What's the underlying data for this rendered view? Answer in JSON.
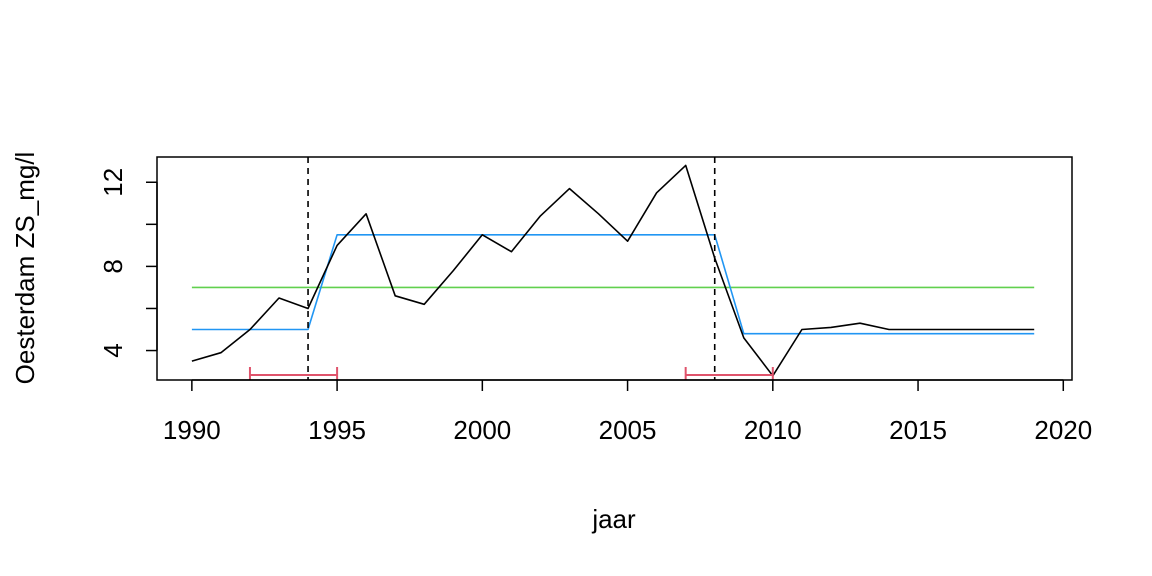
{
  "chart_data": {
    "type": "line",
    "xlabel": "jaar",
    "ylabel": "Oesterdam ZS_mg/l",
    "xlim": [
      1988.8,
      2020.3
    ],
    "ylim": [
      2.6,
      13.2
    ],
    "x_ticks": [
      1990,
      1995,
      2000,
      2005,
      2010,
      2015,
      2020
    ],
    "y_ticks_labeled": [
      4,
      8,
      12
    ],
    "y_ticks_minor": [
      6,
      10
    ],
    "series": [
      {
        "role": "observed",
        "color": "#000000",
        "x": [
          1990,
          1991,
          1992,
          1993,
          1994,
          1995,
          1996,
          1997,
          1998,
          1999,
          2000,
          2001,
          2002,
          2003,
          2004,
          2005,
          2006,
          2007,
          2008,
          2009,
          2010,
          2011,
          2012,
          2013,
          2014,
          2015,
          2016,
          2017,
          2018,
          2019
        ],
        "y": [
          3.5,
          3.9,
          5.0,
          6.5,
          6.0,
          9.0,
          10.5,
          6.6,
          6.2,
          7.8,
          9.5,
          8.7,
          10.4,
          11.7,
          10.5,
          9.2,
          11.5,
          12.8,
          8.4,
          4.6,
          2.8,
          5.0,
          5.1,
          5.3,
          5.0,
          5.0,
          5.0,
          5.0,
          5.0,
          5.0
        ]
      },
      {
        "role": "segmented-fit",
        "color": "#2196f3",
        "x": [
          1990,
          1994,
          1995,
          2008,
          2009,
          2019
        ],
        "y": [
          5.0,
          5.0,
          9.5,
          9.5,
          4.8,
          4.8
        ]
      },
      {
        "role": "overall-mean",
        "color": "#61d04f",
        "x": [
          1990,
          2019
        ],
        "y": [
          7.0,
          7.0
        ]
      }
    ],
    "breakpoints": [
      1994,
      2008
    ],
    "confidence_intervals": [
      {
        "from": 1992,
        "to": 1995
      },
      {
        "from": 2007,
        "to": 2010
      }
    ],
    "ci_color": "#df536b"
  }
}
